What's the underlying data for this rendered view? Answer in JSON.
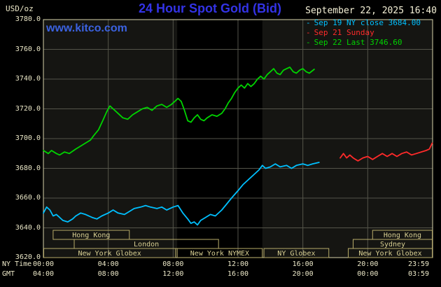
{
  "header": {
    "units": "USD/oz",
    "title": "24 Hour Spot Gold (Bid)",
    "datetime": "September 22, 2025 16:40",
    "watermark": "www.kitco.com"
  },
  "legend": {
    "marker": "-",
    "items": [
      {
        "label": "Sep 19 NY close 3684.00",
        "color": "#00c0ff"
      },
      {
        "label": "Sep 21 Sunday",
        "color": "#ff2a2a"
      },
      {
        "label": "Sep 22 Last 3746.60",
        "color": "#00d400"
      }
    ]
  },
  "axes": {
    "x_axis_label_ny": "NY Time",
    "x_axis_label_gmt": "GMT",
    "ny_ticks": [
      {
        "hour": 0,
        "label": "00:00"
      },
      {
        "hour": 4,
        "label": "04:00"
      },
      {
        "hour": 8,
        "label": "08:00"
      },
      {
        "hour": 12,
        "label": "12:00"
      },
      {
        "hour": 16,
        "label": "16:00"
      },
      {
        "hour": 20,
        "label": "20:00"
      },
      {
        "hour": 23.983,
        "label": "23:59"
      }
    ],
    "gmt_ticks": [
      {
        "hour": 0,
        "label": "04:00"
      },
      {
        "hour": 4,
        "label": "08:00"
      },
      {
        "hour": 8,
        "label": "12:00"
      },
      {
        "hour": 12,
        "label": "16:00"
      },
      {
        "hour": 16,
        "label": "20:00"
      },
      {
        "hour": 20,
        "label": "00:00"
      },
      {
        "hour": 23.983,
        "label": "03:59"
      }
    ],
    "y_ticks": [
      {
        "value": 3620,
        "label": "3620.0"
      },
      {
        "value": 3640,
        "label": "3640.0"
      },
      {
        "value": 3660,
        "label": "3660.0"
      },
      {
        "value": 3680,
        "label": "3680.0"
      },
      {
        "value": 3700,
        "label": "3700.0"
      },
      {
        "value": 3720,
        "label": "3720.0"
      },
      {
        "value": 3740,
        "label": "3740.0"
      },
      {
        "value": 3760,
        "label": "3760.0"
      },
      {
        "value": 3780,
        "label": "3780.0"
      }
    ]
  },
  "chart_data": {
    "type": "line",
    "title": "24 Hour Spot Gold (Bid)",
    "xlabel": "NY Time (hours)",
    "ylabel": "USD/oz",
    "x_range": [
      0,
      24
    ],
    "y_range": [
      3620,
      3780
    ],
    "grid": true,
    "legend_position": "top-right",
    "colors": {
      "plot_bg": "#151512",
      "band": "#000000",
      "grid": "#54544a",
      "frame": "#d7d3ab",
      "session_box": "#b7ab69",
      "session_text": "#d9d093"
    },
    "nymex_band": [
      8.25,
      13.5
    ],
    "series": [
      {
        "name": "Sep 19 NY close 3684.00",
        "color": "#00c0ff",
        "close_value": 3684.0,
        "points": [
          [
            0,
            3650
          ],
          [
            0.2,
            3654
          ],
          [
            0.4,
            3652
          ],
          [
            0.6,
            3648
          ],
          [
            0.8,
            3649
          ],
          [
            1,
            3647
          ],
          [
            1.2,
            3645
          ],
          [
            1.5,
            3644
          ],
          [
            1.8,
            3646
          ],
          [
            2,
            3648
          ],
          [
            2.3,
            3650
          ],
          [
            2.6,
            3649
          ],
          [
            3,
            3647
          ],
          [
            3.3,
            3646
          ],
          [
            3.6,
            3648
          ],
          [
            4,
            3650
          ],
          [
            4.3,
            3652
          ],
          [
            4.6,
            3650
          ],
          [
            5,
            3649
          ],
          [
            5.3,
            3651
          ],
          [
            5.6,
            3653
          ],
          [
            6,
            3654
          ],
          [
            6.3,
            3655
          ],
          [
            6.6,
            3654
          ],
          [
            7,
            3653
          ],
          [
            7.3,
            3654
          ],
          [
            7.6,
            3652
          ],
          [
            8,
            3654
          ],
          [
            8.3,
            3655
          ],
          [
            8.6,
            3650
          ],
          [
            8.9,
            3646
          ],
          [
            9.1,
            3643
          ],
          [
            9.3,
            3644
          ],
          [
            9.5,
            3642
          ],
          [
            9.7,
            3645
          ],
          [
            10,
            3647
          ],
          [
            10.3,
            3649
          ],
          [
            10.6,
            3648
          ],
          [
            11,
            3652
          ],
          [
            11.3,
            3656
          ],
          [
            11.6,
            3660
          ],
          [
            12,
            3665
          ],
          [
            12.3,
            3669
          ],
          [
            12.6,
            3672
          ],
          [
            13,
            3676
          ],
          [
            13.3,
            3679
          ],
          [
            13.5,
            3682
          ],
          [
            13.7,
            3680
          ],
          [
            14,
            3681
          ],
          [
            14.3,
            3683
          ],
          [
            14.6,
            3681
          ],
          [
            15,
            3682
          ],
          [
            15.3,
            3680
          ],
          [
            15.6,
            3682
          ],
          [
            16,
            3683
          ],
          [
            16.3,
            3682
          ],
          [
            16.6,
            3683
          ],
          [
            17,
            3684
          ]
        ]
      },
      {
        "name": "Sep 21 Sunday",
        "color": "#ff2a2a",
        "points": [
          [
            18.3,
            3687
          ],
          [
            18.5,
            3690
          ],
          [
            18.7,
            3687
          ],
          [
            18.9,
            3689
          ],
          [
            19.1,
            3687
          ],
          [
            19.4,
            3685
          ],
          [
            19.7,
            3687
          ],
          [
            20,
            3688
          ],
          [
            20.3,
            3686
          ],
          [
            20.6,
            3688
          ],
          [
            20.9,
            3690
          ],
          [
            21.2,
            3688
          ],
          [
            21.5,
            3690
          ],
          [
            21.8,
            3688
          ],
          [
            22.1,
            3690
          ],
          [
            22.4,
            3691
          ],
          [
            22.7,
            3689
          ],
          [
            23,
            3690
          ],
          [
            23.3,
            3691
          ],
          [
            23.6,
            3692
          ],
          [
            23.8,
            3693
          ],
          [
            23.98,
            3697
          ]
        ]
      },
      {
        "name": "Sep 22 Last 3746.60",
        "color": "#00d400",
        "last_value": 3746.6,
        "points": [
          [
            0,
            3692
          ],
          [
            0.3,
            3690
          ],
          [
            0.5,
            3692
          ],
          [
            0.8,
            3690
          ],
          [
            1,
            3689
          ],
          [
            1.3,
            3691
          ],
          [
            1.6,
            3690
          ],
          [
            2,
            3693
          ],
          [
            2.3,
            3695
          ],
          [
            2.6,
            3697
          ],
          [
            2.9,
            3699
          ],
          [
            3.1,
            3702
          ],
          [
            3.4,
            3706
          ],
          [
            3.7,
            3713
          ],
          [
            3.9,
            3718
          ],
          [
            4.1,
            3722
          ],
          [
            4.3,
            3720
          ],
          [
            4.6,
            3717
          ],
          [
            4.9,
            3714
          ],
          [
            5.2,
            3713
          ],
          [
            5.5,
            3716
          ],
          [
            5.8,
            3718
          ],
          [
            6.1,
            3720
          ],
          [
            6.4,
            3721
          ],
          [
            6.7,
            3719
          ],
          [
            7,
            3722
          ],
          [
            7.3,
            3723
          ],
          [
            7.6,
            3721
          ],
          [
            7.9,
            3723
          ],
          [
            8.1,
            3725
          ],
          [
            8.3,
            3727
          ],
          [
            8.5,
            3725
          ],
          [
            8.7,
            3719
          ],
          [
            8.9,
            3712
          ],
          [
            9.1,
            3711
          ],
          [
            9.3,
            3714
          ],
          [
            9.5,
            3716
          ],
          [
            9.7,
            3713
          ],
          [
            9.9,
            3712
          ],
          [
            10.1,
            3714
          ],
          [
            10.4,
            3716
          ],
          [
            10.7,
            3715
          ],
          [
            11,
            3717
          ],
          [
            11.2,
            3720
          ],
          [
            11.4,
            3724
          ],
          [
            11.6,
            3727
          ],
          [
            11.8,
            3731
          ],
          [
            12,
            3734
          ],
          [
            12.2,
            3736
          ],
          [
            12.4,
            3734
          ],
          [
            12.6,
            3737
          ],
          [
            12.8,
            3735
          ],
          [
            13,
            3737
          ],
          [
            13.2,
            3740
          ],
          [
            13.4,
            3742
          ],
          [
            13.6,
            3740
          ],
          [
            13.8,
            3743
          ],
          [
            14,
            3745
          ],
          [
            14.2,
            3747
          ],
          [
            14.4,
            3744
          ],
          [
            14.6,
            3743
          ],
          [
            14.8,
            3746
          ],
          [
            15,
            3747
          ],
          [
            15.2,
            3748
          ],
          [
            15.4,
            3745
          ],
          [
            15.6,
            3744
          ],
          [
            15.8,
            3746
          ],
          [
            16,
            3747
          ],
          [
            16.2,
            3745
          ],
          [
            16.4,
            3744
          ],
          [
            16.7,
            3746.6
          ]
        ]
      }
    ],
    "sessions": [
      {
        "label": "Hong Kong",
        "row": 0,
        "start": 0.6,
        "end": 5.3
      },
      {
        "label": "Hong Kong",
        "row": 0,
        "start": 20.3,
        "end": 23.98
      },
      {
        "label": "London",
        "row": 1,
        "start": 1.9,
        "end": 10.8
      },
      {
        "label": "Sydney",
        "row": 1,
        "start": 19.1,
        "end": 23.98
      },
      {
        "label": "New York Globex",
        "row": 2,
        "start": 0.02,
        "end": 8.15
      },
      {
        "label": "New York NYMEX",
        "row": 2,
        "start": 8.25,
        "end": 13.5
      },
      {
        "label": "NY Globex",
        "row": 2,
        "start": 13.6,
        "end": 17.6
      },
      {
        "label": "New York Globex",
        "row": 2,
        "start": 18.8,
        "end": 23.98
      }
    ]
  }
}
